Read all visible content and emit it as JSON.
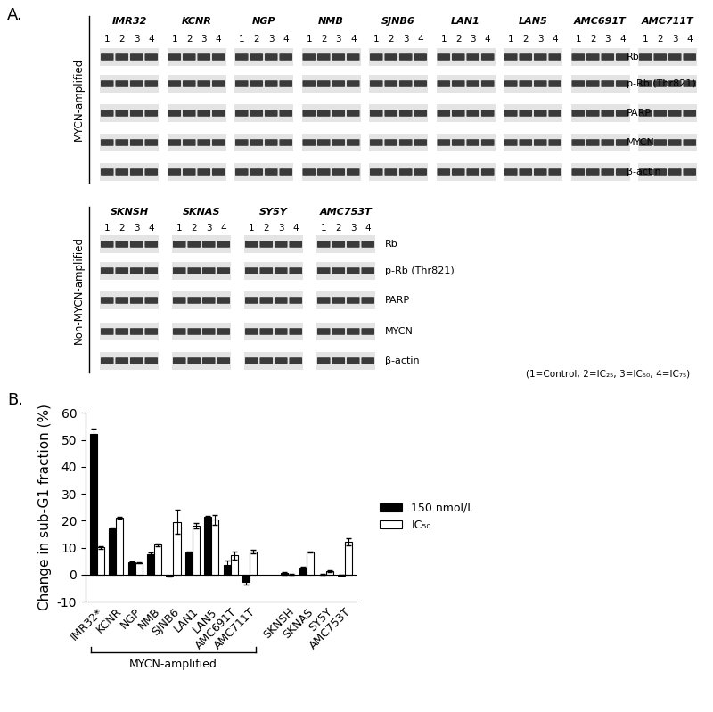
{
  "panel_a": {
    "label": "A.",
    "groups": [
      {
        "title": "MYCN-amplified",
        "cell_lines": [
          "IMR32",
          "KCNR",
          "NGP",
          "NMB",
          "SJNB6",
          "LAN1",
          "LAN5",
          "AMC691T",
          "AMC711T"
        ],
        "lanes": [
          "1",
          "2",
          "3",
          "4"
        ],
        "proteins": [
          "Rb",
          "p-Rb (Thr821)",
          "PARP",
          "MYCN",
          "β-actin"
        ]
      },
      {
        "title": "Non-MYCN-amplified",
        "cell_lines": [
          "SKNSH",
          "SKNAS",
          "SY5Y",
          "AMC753T"
        ],
        "lanes": [
          "1",
          "2",
          "3",
          "4"
        ],
        "proteins": [
          "Rb",
          "p-Rb (Thr821)",
          "PARP",
          "MYCN",
          "β-actin"
        ]
      }
    ],
    "note": "(1=Control; 2=IC₂₅; 3=IC₅₀; 4=IC₇₅)"
  },
  "panel_b_label": "B.",
  "chart_data": {
    "type": "bar",
    "y_label": "Change in sub-G1 fraction (%)",
    "categories": [
      "IMR32*",
      "KCNR",
      "NGP",
      "NMB",
      "SJNB6",
      "LAN1",
      "LAN5",
      "AMC691T",
      "AMC711T",
      null,
      "SKNSH",
      "SKNAS",
      "SY5Y",
      "AMC753T"
    ],
    "series": [
      {
        "name": "150 nmol/L",
        "color": "#000000",
        "values": [
          52.2,
          17.1,
          4.6,
          7.6,
          -0.5,
          8.3,
          21.4,
          3.6,
          -2.8,
          null,
          0.5,
          2.5,
          0.1,
          -0.3
        ],
        "errors": [
          2.0,
          0.3,
          0.2,
          0.7,
          0.3,
          0.3,
          0.5,
          1.5,
          1.0,
          null,
          0.5,
          0.6,
          0.1,
          0.2
        ]
      },
      {
        "name": "IC₅₀",
        "color": "#ffffff",
        "values": [
          10.1,
          21.1,
          4.4,
          11.1,
          19.6,
          18.2,
          20.4,
          7.2,
          8.5,
          null,
          0.1,
          8.5,
          1.2,
          12.2
        ],
        "errors": [
          0.6,
          0.3,
          0.2,
          0.4,
          4.5,
          1.0,
          1.8,
          1.5,
          0.6,
          null,
          0.2,
          0.2,
          0.4,
          1.3
        ]
      }
    ],
    "ylim": [
      -10,
      60
    ],
    "yticks": [
      -10,
      0,
      10,
      20,
      30,
      40,
      50,
      60
    ],
    "legend": "center left",
    "annotations": [
      {
        "text": "MYCN-amplified",
        "from": "IMR32*",
        "to": "AMC711T"
      }
    ]
  }
}
